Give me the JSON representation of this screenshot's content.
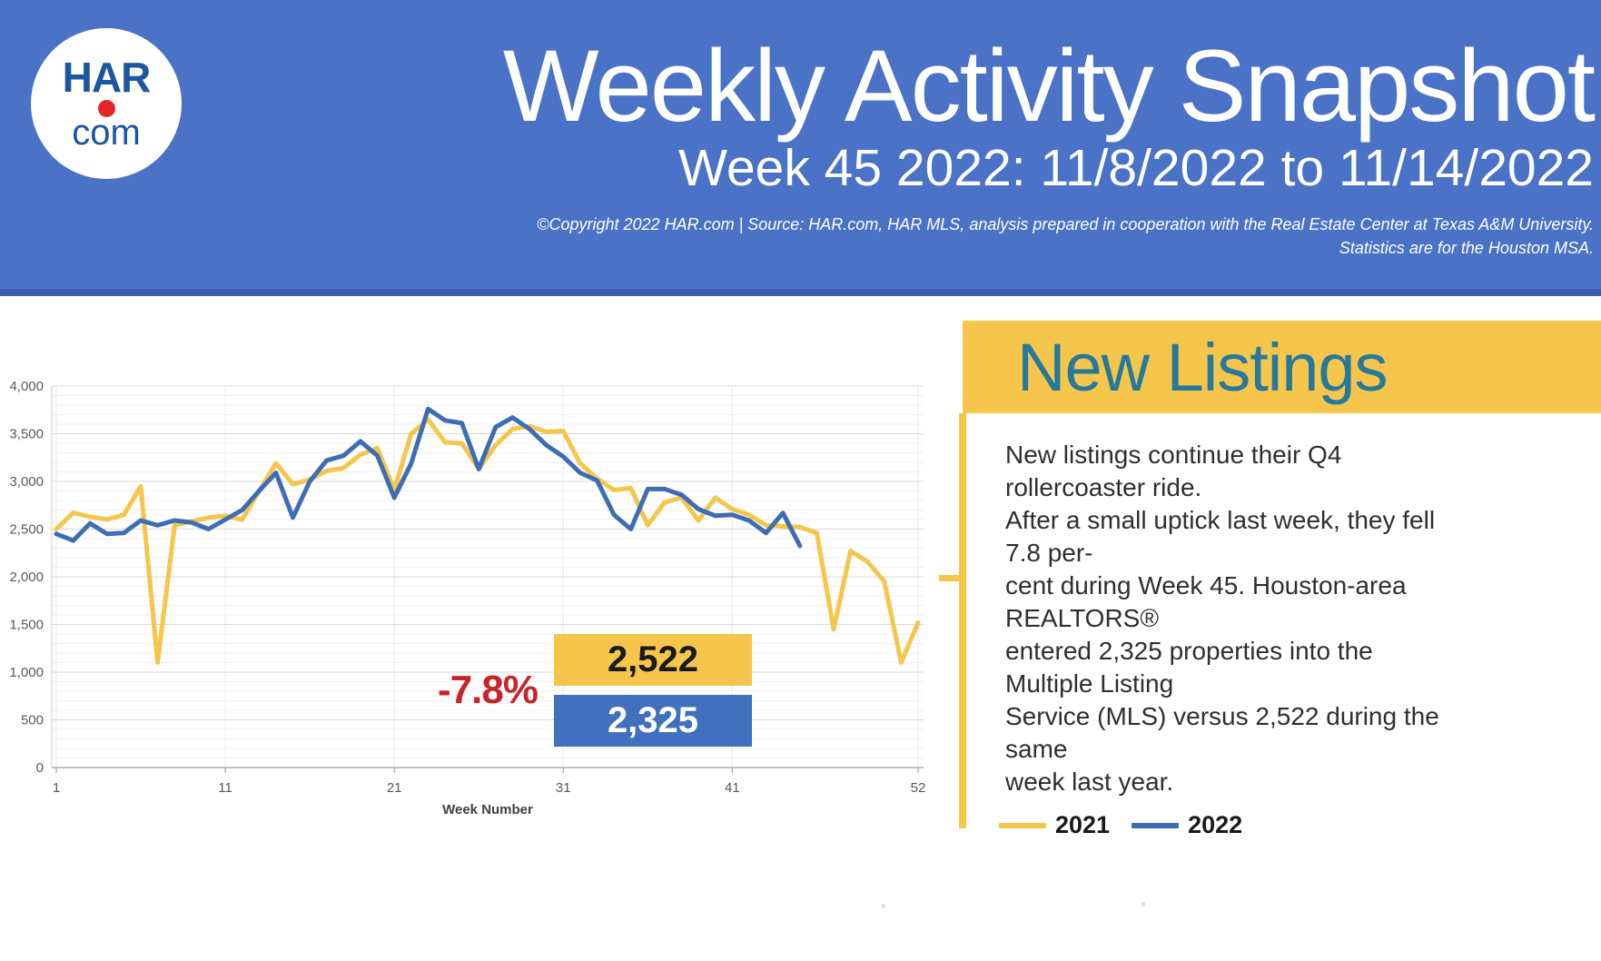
{
  "header": {
    "logo_line1": "HAR",
    "logo_line2": "com",
    "title": "Weekly Activity Snapshot",
    "subtitle": "Week 45 2022: 11/8/2022 to 11/14/2022",
    "copyright_lines": [
      "©Copyright 2022 HAR.com  |  Source: HAR.com, HAR MLS, analysis prepared in cooperation with the Real Estate Center at Texas A&M University.",
      "Statistics are for the Houston MSA."
    ]
  },
  "panel": {
    "title": "New Listings",
    "body_lines": [
      "New listings continue their Q4 rollercoaster ride.",
      "After a small uptick last week, they fell 7.8 per-",
      "cent during Week 45. Houston-area REALTORS®",
      "entered 2,325 properties into the Multiple Listing",
      "Service (MLS) versus 2,522 during the same",
      "week last year."
    ],
    "legend": [
      {
        "label": "2021",
        "color": "#f5c64b"
      },
      {
        "label": "2022",
        "color": "#3e6db6"
      }
    ]
  },
  "annotation": {
    "pct_change": "-7.8%",
    "prev_value": "2,522",
    "curr_value": "2,325",
    "prev_box_color": "#f5c64b",
    "curr_box_color": "#4170bf"
  },
  "colors": {
    "accent_yellow": "#f5c64b",
    "accent_blue": "#3e6db6",
    "header_blue": "#4a72c6",
    "teal_heading": "#27799b",
    "red_negative": "#c9242b"
  },
  "chart_data": {
    "type": "line",
    "xlabel": "Week Number",
    "ylabel": "",
    "xlim": [
      1,
      52
    ],
    "ylim": [
      0,
      4000
    ],
    "xticks": [
      1,
      11,
      21,
      31,
      41,
      52
    ],
    "ytick_step": 500,
    "minor_ytick_step": 100,
    "grid": true,
    "legend_position": "bottom-right",
    "x": [
      1,
      2,
      3,
      4,
      5,
      6,
      7,
      8,
      9,
      10,
      11,
      12,
      13,
      14,
      15,
      16,
      17,
      18,
      19,
      20,
      21,
      22,
      23,
      24,
      25,
      26,
      27,
      28,
      29,
      30,
      31,
      32,
      33,
      34,
      35,
      36,
      37,
      38,
      39,
      40,
      41,
      42,
      43,
      44,
      45,
      46,
      47,
      48,
      49,
      50,
      51,
      52
    ],
    "series": [
      {
        "name": "2021",
        "color": "#f5c64b",
        "values": [
          2500,
          2670,
          2630,
          2600,
          2650,
          2950,
          1100,
          2540,
          2580,
          2620,
          2640,
          2600,
          2900,
          3190,
          2970,
          3020,
          3110,
          3140,
          3280,
          3350,
          2910,
          3500,
          3650,
          3410,
          3400,
          3130,
          3380,
          3550,
          3580,
          3520,
          3530,
          3190,
          3030,
          2910,
          2930,
          2540,
          2780,
          2830,
          2590,
          2830,
          2710,
          2650,
          2540,
          2530,
          2522,
          2460,
          1450,
          2270,
          2160,
          1950,
          1100,
          1520
        ]
      },
      {
        "name": "2022",
        "color": "#3e6db6",
        "values": [
          2450,
          2380,
          2560,
          2450,
          2460,
          2590,
          2540,
          2590,
          2570,
          2500,
          2600,
          2700,
          2900,
          3090,
          2620,
          3000,
          3220,
          3270,
          3420,
          3270,
          2830,
          3190,
          3760,
          3640,
          3610,
          3130,
          3570,
          3670,
          3550,
          3380,
          3260,
          3090,
          3010,
          2650,
          2500,
          2920,
          2920,
          2860,
          2710,
          2640,
          2650,
          2590,
          2460,
          2670,
          2325
        ]
      }
    ]
  }
}
